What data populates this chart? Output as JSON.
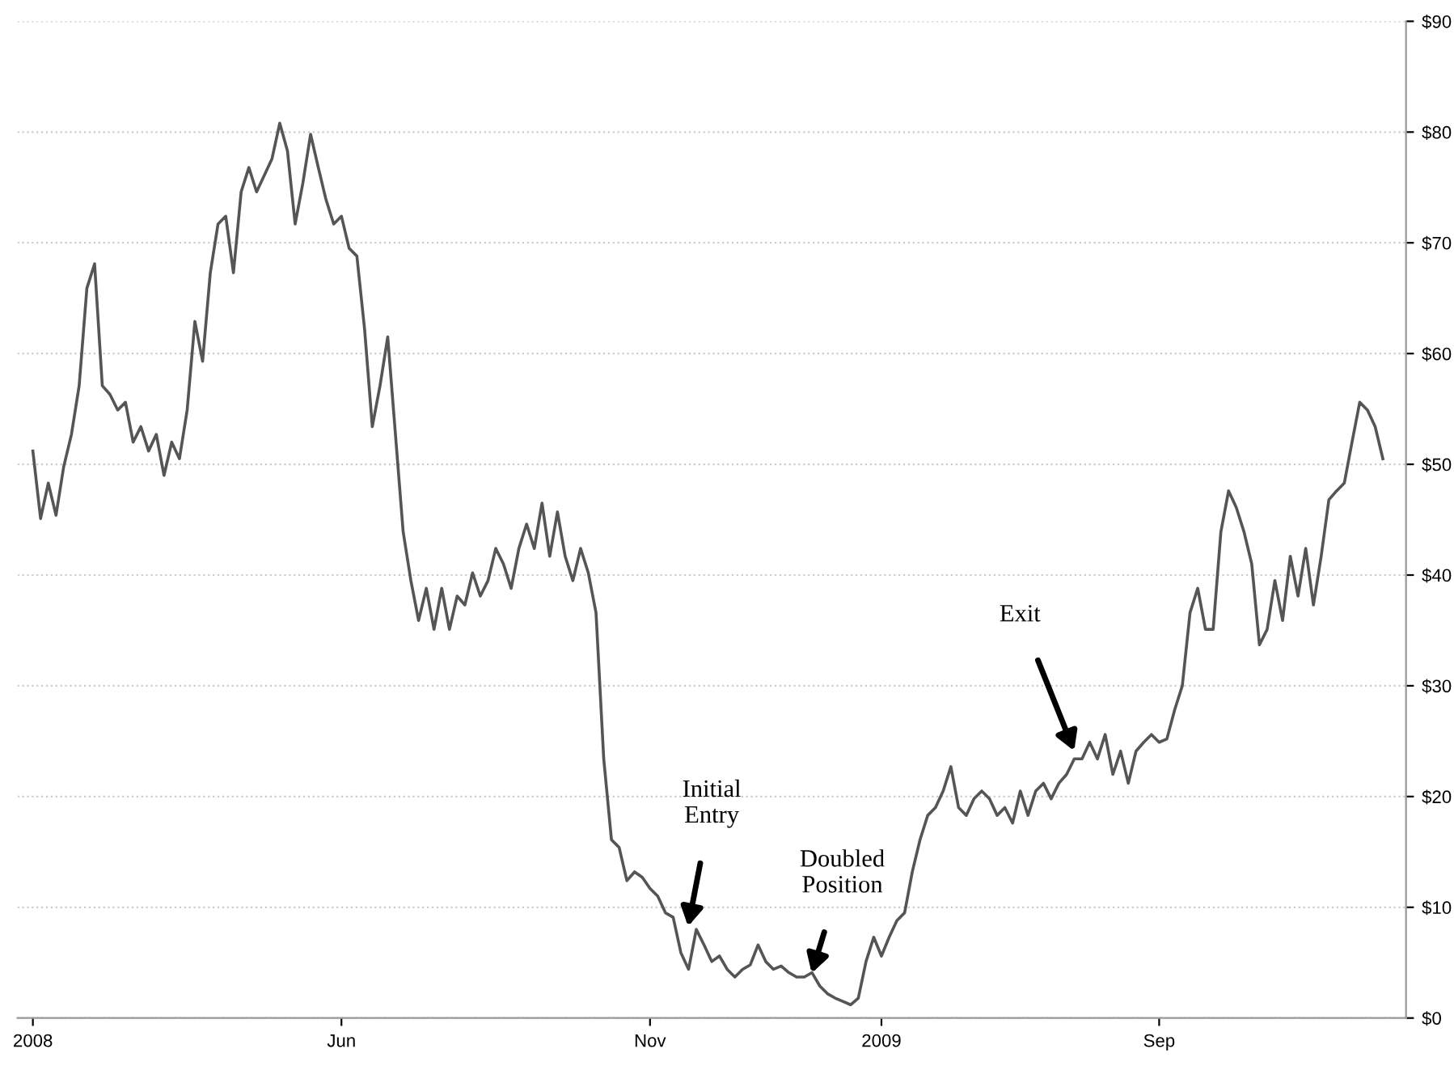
{
  "chart_data": {
    "type": "line",
    "categories": [
      "2008",
      null,
      null,
      null,
      null,
      null,
      null,
      null,
      null,
      null,
      null,
      null,
      null,
      null,
      null,
      null,
      null,
      null,
      null,
      null,
      null,
      null,
      null,
      null,
      null,
      null,
      null,
      null,
      null,
      null,
      null,
      null,
      null,
      null,
      null,
      null,
      null,
      null,
      null,
      null,
      "Jun",
      null,
      null,
      null,
      null,
      null,
      null,
      null,
      null,
      null,
      null,
      null,
      null,
      null,
      null,
      null,
      null,
      null,
      null,
      null,
      null,
      null,
      null,
      null,
      null,
      null,
      null,
      null,
      null,
      null,
      null,
      null,
      null,
      null,
      null,
      null,
      null,
      null,
      null,
      null,
      "Nov",
      null,
      null,
      null,
      null,
      null,
      null,
      null,
      null,
      null,
      null,
      null,
      null,
      null,
      null,
      null,
      null,
      null,
      null,
      null,
      null,
      null,
      null,
      null,
      null,
      null,
      null,
      null,
      null,
      null,
      "2009",
      null,
      null,
      null,
      null,
      null,
      null,
      null,
      null,
      null,
      null,
      null,
      null,
      null,
      null,
      null,
      null,
      null,
      null,
      null,
      null,
      null,
      null,
      null,
      null,
      null,
      null,
      null,
      null,
      null,
      null,
      null,
      null,
      null,
      null,
      null,
      "Sep",
      null,
      null,
      null,
      null,
      null,
      null,
      null,
      null,
      null,
      null,
      null,
      null,
      null,
      null,
      null,
      null,
      null,
      null,
      null,
      null,
      null,
      null,
      null,
      null,
      null,
      null,
      null,
      null,
      null
    ],
    "series": [
      {
        "color": "#555555",
        "values": [
          51.2,
          45.1,
          48.3,
          45.4,
          49.8,
          52.7,
          57.1,
          65.9,
          68.1,
          57.1,
          56.3,
          54.9,
          55.6,
          52.0,
          53.4,
          51.2,
          52.7,
          49.0,
          52.0,
          50.5,
          54.9,
          62.9,
          59.3,
          67.3,
          71.7,
          72.4,
          67.3,
          74.6,
          76.8,
          74.6,
          76.1,
          77.6,
          80.8,
          78.3,
          71.7,
          75.4,
          79.8,
          76.8,
          73.9,
          71.7,
          72.4,
          69.5,
          68.8,
          62.2,
          53.4,
          57.1,
          61.5,
          52.7,
          43.9,
          39.5,
          35.9,
          38.8,
          35.1,
          38.8,
          35.1,
          38.1,
          37.3,
          40.2,
          38.1,
          39.5,
          42.4,
          41.0,
          38.8,
          42.4,
          44.6,
          42.4,
          46.5,
          41.7,
          45.7,
          41.7,
          39.5,
          42.4,
          40.2,
          36.6,
          23.4,
          16.1,
          15.4,
          12.4,
          13.2,
          12.7,
          11.7,
          11.0,
          9.5,
          9.1,
          5.9,
          4.4,
          8.0,
          6.6,
          5.1,
          5.6,
          4.4,
          3.7,
          4.4,
          4.8,
          6.6,
          5.1,
          4.4,
          4.7,
          4.1,
          3.7,
          3.7,
          4.1,
          2.9,
          2.2,
          1.8,
          1.5,
          1.2,
          1.8,
          5.1,
          7.3,
          5.6,
          7.3,
          8.8,
          9.5,
          13.2,
          16.1,
          18.3,
          19.0,
          20.5,
          22.7,
          19.0,
          18.3,
          19.8,
          20.5,
          19.8,
          18.3,
          19.0,
          17.6,
          20.5,
          18.3,
          20.5,
          21.2,
          19.8,
          21.2,
          22.0,
          23.4,
          23.4,
          24.9,
          23.4,
          25.6,
          22.0,
          24.1,
          21.2,
          24.1,
          24.9,
          25.6,
          24.9,
          25.2,
          27.8,
          30.0,
          36.6,
          38.8,
          35.1,
          35.1,
          43.9,
          47.6,
          46.1,
          43.9,
          41.0,
          33.7,
          35.1,
          39.5,
          35.9,
          41.7,
          38.1,
          42.4,
          37.3,
          41.7,
          46.8,
          47.6,
          48.3,
          52.0,
          55.6,
          54.9,
          53.4,
          50.5
        ]
      }
    ],
    "ylim": [
      0,
      90
    ],
    "yticks": [
      {
        "value": 0,
        "label": "$0"
      },
      {
        "value": 10,
        "label": "$10"
      },
      {
        "value": 20,
        "label": "$20"
      },
      {
        "value": 30,
        "label": "$30"
      },
      {
        "value": 40,
        "label": "$40"
      },
      {
        "value": 50,
        "label": "$50"
      },
      {
        "value": 60,
        "label": "$60"
      },
      {
        "value": 70,
        "label": "$70"
      },
      {
        "value": 80,
        "label": "$80"
      },
      {
        "value": 90,
        "label": "$90"
      }
    ],
    "grid": "y",
    "annotations": [
      "Initial\nEntry",
      "Doubled\nPosition",
      "Exit"
    ]
  }
}
